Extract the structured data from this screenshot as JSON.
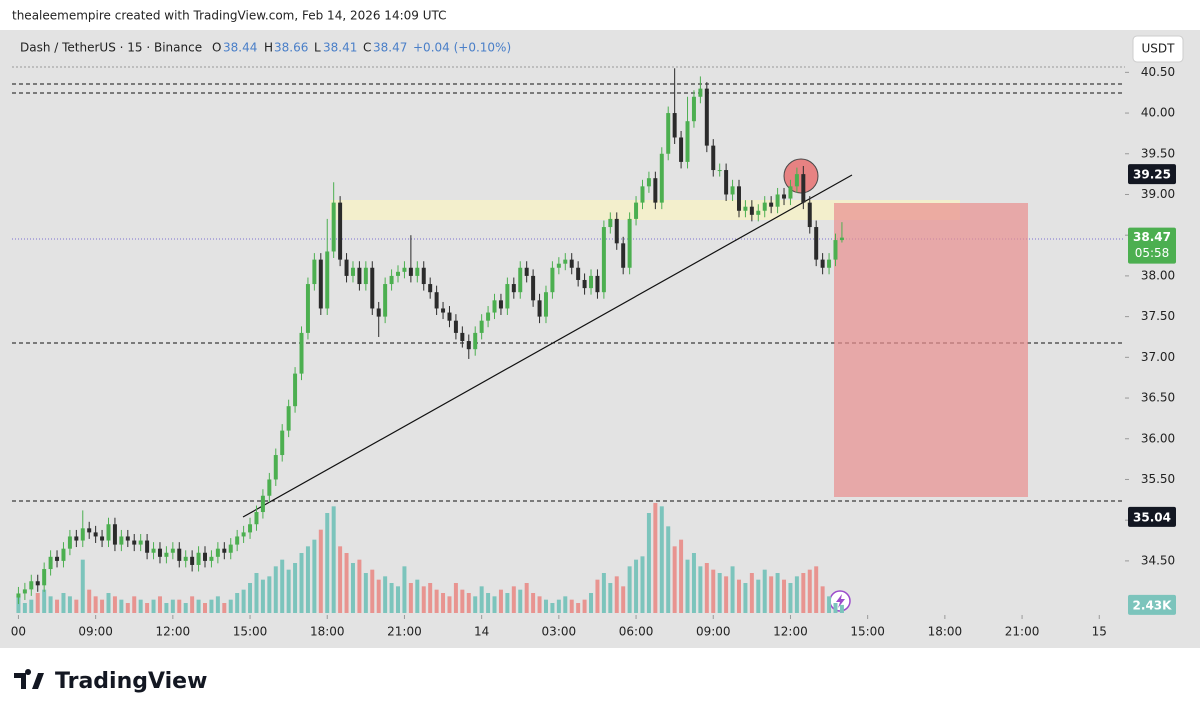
{
  "chart_data": {
    "type": "candlestick",
    "attribution": "thealeemempire created with TradingView.com, Feb 14, 2026 14:09 UTC",
    "title": "Dash / TetherUS · 15 · Binance",
    "ohlc_letters": [
      "O",
      "H",
      "L",
      "C"
    ],
    "change": "+0.04 (+0.10%)",
    "currency": "USDT",
    "brand": "TradingView",
    "countdown": "05:58",
    "volume_label": "2.43K",
    "marker_prices": [
      39.25,
      35.04
    ],
    "up_color": "#4caf50",
    "down_color": "#2b2b2b",
    "volume_up_color": "#7cc4bc",
    "volume_down_color": "#e89490",
    "open": [
      34.05,
      34.1,
      34.15,
      34.25,
      34.2,
      34.4,
      34.55,
      34.5,
      34.65,
      34.8,
      34.75,
      34.9,
      34.85,
      34.8,
      34.75,
      34.95,
      34.7,
      34.8,
      34.75,
      34.7,
      34.75,
      34.6,
      34.65,
      34.55,
      34.6,
      34.65,
      34.5,
      34.55,
      34.45,
      34.6,
      34.5,
      34.55,
      34.65,
      34.6,
      34.7,
      34.8,
      34.85,
      34.95,
      35.1,
      35.3,
      35.5,
      35.8,
      36.1,
      36.4,
      36.8,
      37.3,
      37.9,
      38.2,
      37.6,
      38.3,
      38.9,
      38.2,
      38.0,
      38.1,
      37.9,
      38.1,
      37.6,
      37.5,
      37.9,
      38.0,
      38.05,
      38.1,
      38.0,
      38.1,
      37.9,
      37.8,
      37.6,
      37.55,
      37.45,
      37.3,
      37.2,
      37.1,
      37.3,
      37.45,
      37.55,
      37.7,
      37.6,
      37.9,
      37.8,
      38.1,
      38.0,
      37.7,
      37.5,
      37.8,
      38.1,
      38.15,
      38.2,
      38.1,
      37.95,
      37.85,
      38.0,
      37.8,
      38.6,
      38.7,
      38.4,
      38.1,
      38.7,
      38.9,
      39.1,
      39.2,
      38.9,
      39.5,
      40.0,
      39.7,
      39.4,
      39.9,
      40.2,
      40.3,
      39.6,
      39.3,
      39.3,
      39.0,
      39.1,
      38.8,
      38.85,
      38.75,
      38.8,
      38.9,
      38.85,
      39.0,
      38.95,
      39.1,
      39.25,
      38.9,
      38.6,
      38.2,
      38.1,
      38.2,
      38.44
    ],
    "high": [
      34.18,
      34.23,
      34.33,
      34.33,
      34.48,
      34.63,
      34.63,
      34.73,
      34.88,
      34.88,
      35.12,
      34.98,
      34.93,
      34.88,
      35.03,
      35.03,
      34.88,
      34.88,
      34.83,
      34.83,
      34.83,
      34.73,
      34.73,
      34.68,
      34.73,
      34.73,
      34.63,
      34.63,
      34.68,
      34.68,
      34.63,
      34.73,
      34.73,
      34.78,
      34.88,
      34.93,
      35.03,
      35.18,
      35.38,
      35.58,
      35.88,
      36.18,
      36.48,
      36.88,
      37.38,
      37.98,
      38.28,
      38.28,
      38.7,
      39.15,
      38.98,
      38.28,
      38.18,
      38.18,
      38.18,
      38.18,
      37.68,
      37.98,
      38.08,
      38.13,
      38.18,
      38.5,
      38.18,
      38.18,
      37.98,
      37.88,
      37.68,
      37.63,
      37.53,
      37.38,
      37.28,
      37.38,
      37.53,
      37.63,
      37.78,
      37.78,
      37.98,
      37.98,
      38.18,
      38.18,
      38.08,
      37.78,
      37.88,
      38.18,
      38.23,
      38.28,
      38.28,
      38.18,
      38.03,
      38.08,
      38.08,
      38.68,
      38.78,
      38.78,
      38.48,
      38.78,
      38.98,
      39.18,
      39.28,
      39.28,
      39.58,
      40.08,
      40.55,
      39.78,
      40.2,
      40.28,
      40.45,
      40.38,
      39.68,
      39.38,
      39.38,
      39.18,
      39.18,
      38.93,
      38.93,
      38.88,
      38.98,
      38.98,
      39.08,
      39.08,
      39.18,
      39.33,
      39.35,
      38.98,
      38.68,
      38.28,
      38.28,
      38.52,
      38.66
    ],
    "low": [
      33.97,
      34.02,
      34.07,
      34.12,
      34.12,
      34.32,
      34.42,
      34.42,
      34.57,
      34.67,
      34.67,
      34.77,
      34.72,
      34.67,
      34.67,
      34.62,
      34.62,
      34.67,
      34.62,
      34.62,
      34.52,
      34.52,
      34.47,
      34.47,
      34.52,
      34.42,
      34.42,
      34.37,
      34.37,
      34.42,
      34.42,
      34.47,
      34.52,
      34.52,
      34.62,
      34.72,
      34.77,
      34.87,
      35.02,
      35.22,
      35.42,
      35.72,
      36.02,
      36.32,
      36.72,
      37.22,
      37.82,
      37.52,
      37.52,
      38.22,
      38.12,
      37.92,
      37.92,
      37.82,
      37.82,
      37.52,
      37.25,
      37.42,
      37.82,
      37.92,
      37.97,
      37.92,
      37.92,
      37.82,
      37.72,
      37.52,
      37.47,
      37.37,
      37.22,
      37.12,
      36.98,
      37.02,
      37.22,
      37.37,
      37.47,
      37.52,
      37.52,
      37.72,
      37.72,
      37.92,
      37.62,
      37.42,
      37.42,
      37.72,
      38.02,
      38.07,
      38.02,
      37.87,
      37.77,
      37.77,
      37.72,
      37.72,
      38.52,
      38.32,
      38.02,
      38.02,
      38.62,
      38.82,
      39.02,
      38.82,
      38.82,
      39.42,
      39.62,
      39.32,
      39.32,
      39.82,
      40.12,
      39.52,
      39.22,
      39.22,
      38.92,
      38.92,
      38.72,
      38.72,
      38.67,
      38.67,
      38.72,
      38.77,
      38.77,
      38.87,
      38.87,
      39.02,
      38.82,
      38.52,
      38.12,
      38.02,
      38.02,
      38.12,
      38.41
    ],
    "close": [
      34.1,
      34.15,
      34.25,
      34.2,
      34.4,
      34.55,
      34.5,
      34.65,
      34.8,
      34.75,
      34.9,
      34.85,
      34.8,
      34.75,
      34.95,
      34.7,
      34.8,
      34.75,
      34.7,
      34.75,
      34.6,
      34.65,
      34.55,
      34.6,
      34.65,
      34.5,
      34.55,
      34.45,
      34.6,
      34.5,
      34.55,
      34.65,
      34.6,
      34.7,
      34.8,
      34.85,
      34.95,
      35.1,
      35.3,
      35.5,
      35.8,
      36.1,
      36.4,
      36.8,
      37.3,
      37.9,
      38.2,
      37.6,
      38.3,
      38.9,
      38.2,
      38.0,
      38.1,
      37.9,
      38.1,
      37.6,
      37.5,
      37.9,
      38.0,
      38.05,
      38.1,
      38.0,
      38.1,
      37.9,
      37.8,
      37.6,
      37.55,
      37.45,
      37.3,
      37.2,
      37.1,
      37.3,
      37.45,
      37.55,
      37.7,
      37.6,
      37.9,
      37.8,
      38.1,
      38.0,
      37.7,
      37.5,
      37.8,
      38.1,
      38.15,
      38.2,
      38.1,
      37.95,
      37.85,
      38.0,
      37.8,
      38.6,
      38.7,
      38.4,
      38.1,
      38.7,
      38.9,
      39.1,
      39.2,
      38.9,
      39.5,
      40.0,
      39.7,
      39.4,
      39.9,
      40.2,
      40.3,
      39.6,
      39.3,
      39.3,
      39.0,
      39.1,
      38.8,
      38.85,
      38.75,
      38.8,
      38.9,
      38.85,
      39.0,
      38.95,
      39.1,
      39.25,
      38.9,
      38.6,
      38.2,
      38.1,
      38.2,
      38.44,
      38.47
    ],
    "volume": [
      5000,
      3000,
      4000,
      6000,
      7000,
      5000,
      4000,
      6000,
      5000,
      4000,
      16000,
      7000,
      5000,
      4000,
      6000,
      5000,
      4000,
      3000,
      5000,
      4000,
      3000,
      4000,
      5000,
      3000,
      4000,
      4000,
      3000,
      5000,
      4000,
      3000,
      4000,
      5000,
      3000,
      4000,
      6000,
      7000,
      9000,
      12000,
      10000,
      11000,
      14000,
      16000,
      13000,
      15000,
      18000,
      20000,
      22000,
      25000,
      30000,
      32000,
      20000,
      18000,
      15000,
      16000,
      12000,
      13000,
      10000,
      11000,
      9000,
      8000,
      14000,
      9000,
      10000,
      8000,
      9000,
      7000,
      6000,
      5000,
      9000,
      7000,
      6000,
      5000,
      8000,
      6000,
      5000,
      7000,
      6000,
      8000,
      7000,
      9000,
      6000,
      5000,
      4000,
      3000,
      4000,
      5000,
      4000,
      3000,
      4000,
      6000,
      10000,
      12000,
      9000,
      11000,
      8000,
      14000,
      16000,
      17000,
      30000,
      33000,
      32000,
      26000,
      20000,
      22000,
      16000,
      18000,
      14000,
      15000,
      13000,
      12000,
      11000,
      14000,
      10000,
      9000,
      12000,
      10000,
      13000,
      11000,
      12000,
      10000,
      9000,
      11000,
      12000,
      13000,
      14000,
      8000,
      5000,
      3000,
      2430
    ],
    "ylim": [
      33.86,
      41.02
    ],
    "vlim": [
      0,
      36000
    ],
    "xlim": [
      -1,
      172
    ],
    "yticks": [
      {
        "value": 34.5,
        "label": "34.50"
      },
      {
        "value": 35,
        "label": "35.00"
      },
      {
        "value": 35.5,
        "label": "35.50"
      },
      {
        "value": 36,
        "label": "36.00"
      },
      {
        "value": 36.5,
        "label": "36.50"
      },
      {
        "value": 37,
        "label": "37.00"
      },
      {
        "value": 37.5,
        "label": "37.50"
      },
      {
        "value": 38,
        "label": "38.00"
      },
      {
        "value": 38.5,
        "label": "38.50"
      },
      {
        "value": 39,
        "label": "39.00"
      },
      {
        "value": 39.5,
        "label": "39.50"
      },
      {
        "value": 40,
        "label": "40.00"
      },
      {
        "value": 40.5,
        "label": "40.50"
      }
    ],
    "xticks": [
      {
        "value": 0,
        "label": "00"
      },
      {
        "value": 12,
        "label": "09:00"
      },
      {
        "value": 24,
        "label": "12:00"
      },
      {
        "value": 36,
        "label": "15:00"
      },
      {
        "value": 48,
        "label": "18:00"
      },
      {
        "value": 60,
        "label": "21:00"
      },
      {
        "value": 72,
        "label": "14"
      },
      {
        "value": 84,
        "label": "03:00"
      },
      {
        "value": 96,
        "label": "06:00"
      },
      {
        "value": 108,
        "label": "09:00"
      },
      {
        "value": 120,
        "label": "12:00"
      },
      {
        "value": 132,
        "label": "15:00"
      },
      {
        "value": 144,
        "label": "18:00"
      },
      {
        "value": 156,
        "label": "21:00"
      },
      {
        "value": 168,
        "label": "15"
      }
    ]
  }
}
